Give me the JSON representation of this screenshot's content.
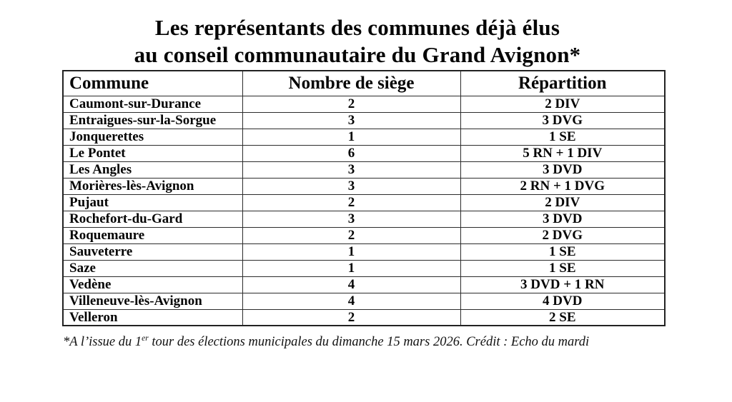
{
  "title": {
    "line1": "Les représentants des communes déjà élus",
    "line2": "au conseil communautaire du Grand Avignon*"
  },
  "chart_data": {
    "type": "table",
    "title": "Les représentants des communes déjà élus au conseil communautaire du Grand Avignon*",
    "columns": [
      "Commune",
      "Nombre de siège",
      "Répartition"
    ],
    "rows": [
      [
        "Caumont-sur-Durance",
        "2",
        "2 DIV"
      ],
      [
        "Entraigues-sur-la-Sorgue",
        "3",
        "3 DVG"
      ],
      [
        "Jonquerettes",
        "1",
        "1 SE"
      ],
      [
        "Le Pontet",
        "6",
        "5 RN + 1 DIV"
      ],
      [
        "Les Angles",
        "3",
        "3 DVD"
      ],
      [
        "Morières-lès-Avignon",
        "3",
        "2 RN + 1 DVG"
      ],
      [
        "Pujaut",
        "2",
        "2 DIV"
      ],
      [
        "Rochefort-du-Gard",
        "3",
        "3 DVD"
      ],
      [
        "Roquemaure",
        "2",
        "2 DVG"
      ],
      [
        "Sauveterre",
        "1",
        "1 SE"
      ],
      [
        "Saze",
        "1",
        "1 SE"
      ],
      [
        "Vedène",
        "4",
        "3 DVD + 1 RN"
      ],
      [
        "Villeneuve-lès-Avignon",
        "4",
        "4 DVD"
      ],
      [
        "Velleron",
        "2",
        "2 SE"
      ]
    ]
  },
  "colors": {
    "text": "#050505",
    "border": "#2c2c2c",
    "background": "#ffffff"
  },
  "footnote": {
    "prefix": "*A l’issue du 1",
    "superscript": "er",
    "suffix": " tour des élections municipales du dimanche 15 mars 2026. Crédit : Echo du mardi"
  }
}
